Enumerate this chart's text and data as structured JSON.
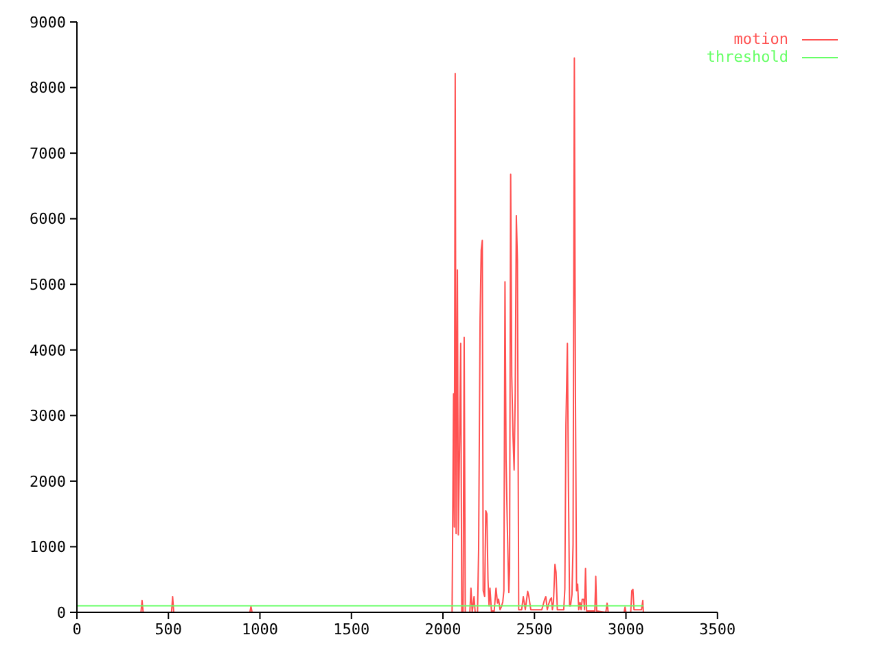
{
  "chart_data": {
    "type": "line",
    "xlim": [
      0,
      3500
    ],
    "xticks": [
      0,
      500,
      1000,
      1500,
      2000,
      2500,
      3000,
      3500
    ],
    "ylim": [
      0,
      9000
    ],
    "yticks": [
      0,
      1000,
      2000,
      3000,
      4000,
      5000,
      6000,
      7000,
      8000,
      9000
    ],
    "grid": false,
    "legend": "top right",
    "marker": "none",
    "line_style": "solid",
    "series": [
      {
        "name": "motion",
        "color": "#ff5050",
        "x": [
          0,
          350,
          356,
          362,
          517,
          523,
          529,
          945,
          951,
          957,
          2050,
          2058,
          2062,
          2067,
          2072,
          2079,
          2084,
          2091,
          2097,
          2103,
          2110,
          2116,
          2122,
          2147,
          2153,
          2160,
          2170,
          2176,
          2189,
          2195,
          2203,
          2209,
          2215,
          2220,
          2228,
          2234,
          2240,
          2246,
          2252,
          2257,
          2265,
          2280,
          2290,
          2298,
          2304,
          2312,
          2319,
          2327,
          2333,
          2339,
          2345,
          2352,
          2360,
          2364,
          2370,
          2376,
          2383,
          2389,
          2395,
          2401,
          2407,
          2414,
          2430,
          2439,
          2450,
          2463,
          2469,
          2480,
          2540,
          2556,
          2562,
          2570,
          2577,
          2587,
          2593,
          2598,
          2604,
          2612,
          2618,
          2625,
          2645,
          2660,
          2666,
          2672,
          2680,
          2686,
          2692,
          2697,
          2705,
          2711,
          2718,
          2724,
          2730,
          2736,
          2742,
          2749,
          2755,
          2761,
          2769,
          2774,
          2779,
          2785,
          2830,
          2835,
          2840,
          2890,
          2897,
          2903,
          2990,
          2995,
          3000,
          3026,
          3032,
          3038,
          3044,
          3085,
          3092,
          3095
        ],
        "values": [
          0,
          0,
          180,
          0,
          0,
          240,
          0,
          0,
          90,
          0,
          0,
          3330,
          1300,
          8215,
          1200,
          5220,
          1180,
          2600,
          4100,
          0,
          0,
          4190,
          0,
          0,
          370,
          0,
          240,
          0,
          0,
          960,
          4470,
          5520,
          5670,
          330,
          240,
          1550,
          1500,
          510,
          100,
          370,
          20,
          20,
          370,
          140,
          200,
          40,
          80,
          160,
          330,
          5040,
          2320,
          1280,
          300,
          650,
          6680,
          3600,
          2680,
          2170,
          3350,
          6050,
          5360,
          40,
          40,
          240,
          40,
          320,
          250,
          40,
          40,
          200,
          240,
          40,
          120,
          200,
          220,
          40,
          160,
          730,
          610,
          40,
          40,
          40,
          355,
          2860,
          4100,
          1850,
          100,
          100,
          270,
          1040,
          8450,
          3270,
          330,
          430,
          40,
          150,
          40,
          200,
          200,
          40,
          670,
          20,
          20,
          550,
          20,
          0,
          140,
          0,
          0,
          80,
          0,
          0,
          330,
          350,
          40,
          40,
          180,
          0
        ]
      },
      {
        "name": "threshold",
        "color": "#66ff66",
        "x": [
          0,
          3095
        ],
        "values": [
          100,
          100
        ]
      }
    ]
  }
}
